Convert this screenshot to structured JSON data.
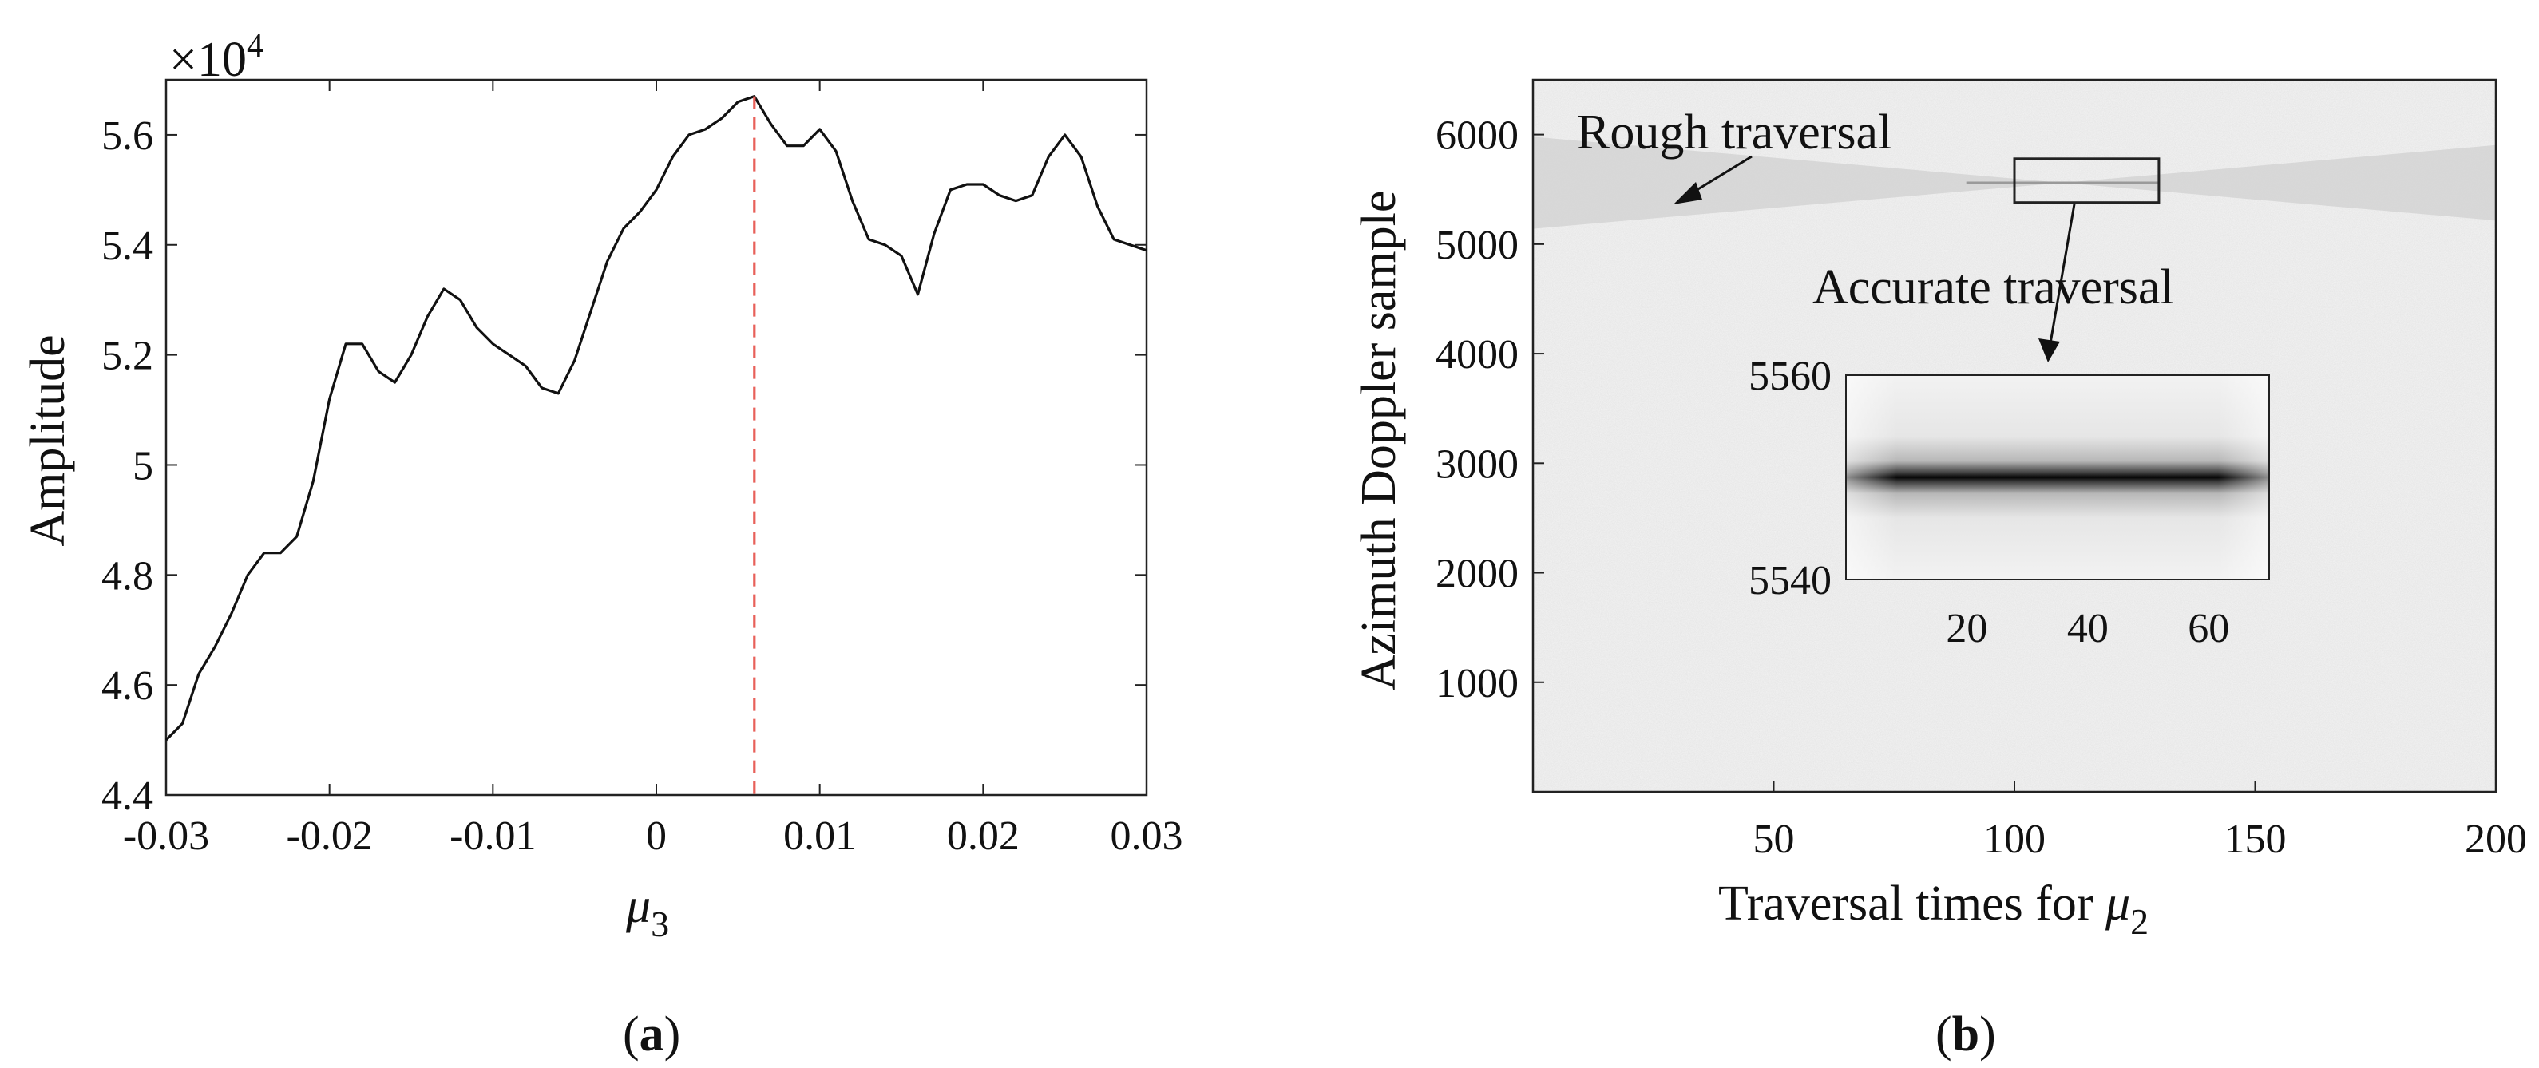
{
  "panels": [
    {
      "caption": "(a)",
      "caption_bold": "a",
      "chart_type": "line",
      "ylabel": "Amplitude",
      "xlabel_symbol": "μ",
      "xlabel_sub": "3",
      "exponent_label": "×10",
      "exponent_power": "4"
    },
    {
      "caption": "(b)",
      "caption_bold": "b",
      "chart_type": "heatmap",
      "ylabel": "Azimuth Doppler sample",
      "xlabel_text": "Traversal times for ",
      "xlabel_symbol": "μ",
      "xlabel_sub": "2",
      "annotation_rough": "Rough traversal",
      "annotation_accurate": "Accurate traversal"
    }
  ],
  "chart_data": [
    {
      "type": "line",
      "xlabel": "μ3",
      "ylabel": "Amplitude",
      "y_multiplier": "×10^4",
      "xlim": [
        -0.03,
        0.03
      ],
      "ylim": [
        4.4,
        5.7
      ],
      "xticks": [
        -0.03,
        -0.02,
        -0.01,
        0,
        0.01,
        0.02,
        0.03
      ],
      "xtick_labels": [
        "-0.03",
        "-0.02",
        "-0.01",
        "0",
        "0.01",
        "0.02",
        "0.03"
      ],
      "yticks": [
        4.4,
        4.6,
        4.8,
        5.0,
        5.2,
        5.4,
        5.6
      ],
      "ytick_labels": [
        "4.4",
        "4.6",
        "4.8",
        "5",
        "5.2",
        "5.4",
        "5.6"
      ],
      "series": [
        {
          "color": "#111111",
          "x": [
            -0.03,
            -0.029,
            -0.028,
            -0.027,
            -0.026,
            -0.025,
            -0.024,
            -0.023,
            -0.022,
            -0.021,
            -0.02,
            -0.019,
            -0.018,
            -0.017,
            -0.016,
            -0.015,
            -0.014,
            -0.013,
            -0.012,
            -0.011,
            -0.01,
            -0.009,
            -0.008,
            -0.007,
            -0.006,
            -0.005,
            -0.004,
            -0.003,
            -0.002,
            -0.001,
            0.0,
            0.001,
            0.002,
            0.003,
            0.004,
            0.005,
            0.006,
            0.007,
            0.008,
            0.009,
            0.01,
            0.011,
            0.012,
            0.013,
            0.014,
            0.015,
            0.016,
            0.017,
            0.018,
            0.019,
            0.02,
            0.021,
            0.022,
            0.023,
            0.024,
            0.025,
            0.026,
            0.027,
            0.028,
            0.029,
            0.03
          ],
          "y": [
            4.5,
            4.53,
            4.62,
            4.67,
            4.73,
            4.8,
            4.84,
            4.84,
            4.87,
            4.97,
            5.12,
            5.22,
            5.22,
            5.17,
            5.15,
            5.2,
            5.27,
            5.32,
            5.3,
            5.25,
            5.22,
            5.2,
            5.18,
            5.14,
            5.13,
            5.19,
            5.28,
            5.37,
            5.43,
            5.46,
            5.5,
            5.56,
            5.6,
            5.61,
            5.63,
            5.66,
            5.67,
            5.62,
            5.58,
            5.58,
            5.61,
            5.57,
            5.48,
            5.41,
            5.4,
            5.38,
            5.31,
            5.42,
            5.5,
            5.51,
            5.51,
            5.49,
            5.48,
            5.49,
            5.56,
            5.6,
            5.56,
            5.47,
            5.41,
            5.4,
            5.39
          ]
        }
      ],
      "markers": [
        {
          "type": "vline",
          "x": 0.006,
          "color": "#e8605a",
          "style": "dashed"
        }
      ]
    },
    {
      "type": "heatmap",
      "xlabel": "Traversal times for μ2",
      "ylabel": "Azimuth Doppler sample",
      "xlim": [
        0,
        200
      ],
      "ylim": [
        0,
        6500
      ],
      "xticks": [
        50,
        100,
        150,
        200
      ],
      "xtick_labels": [
        "50",
        "100",
        "150",
        "200"
      ],
      "yticks": [
        1000,
        2000,
        3000,
        4000,
        5000,
        6000
      ],
      "ytick_labels": [
        "1000",
        "2000",
        "3000",
        "4000",
        "5000",
        "6000"
      ],
      "colormap": "gray",
      "band": {
        "center": 5560,
        "max_halfwidth": 420,
        "converge_x": 110
      },
      "highlight_box": {
        "x": [
          100,
          130
        ],
        "y": [
          5380,
          5780
        ]
      },
      "inset": {
        "xticks": [
          20,
          40,
          60
        ],
        "xtick_labels": [
          "20",
          "40",
          "60"
        ],
        "yticks": [
          5540,
          5560
        ],
        "ytick_labels": [
          "5540",
          "5560"
        ],
        "xlim": [
          0,
          70
        ],
        "ylim": [
          5540,
          5560
        ],
        "peak_y": 5550
      },
      "annotations": [
        "Rough traversal",
        "Accurate traversal"
      ]
    }
  ]
}
